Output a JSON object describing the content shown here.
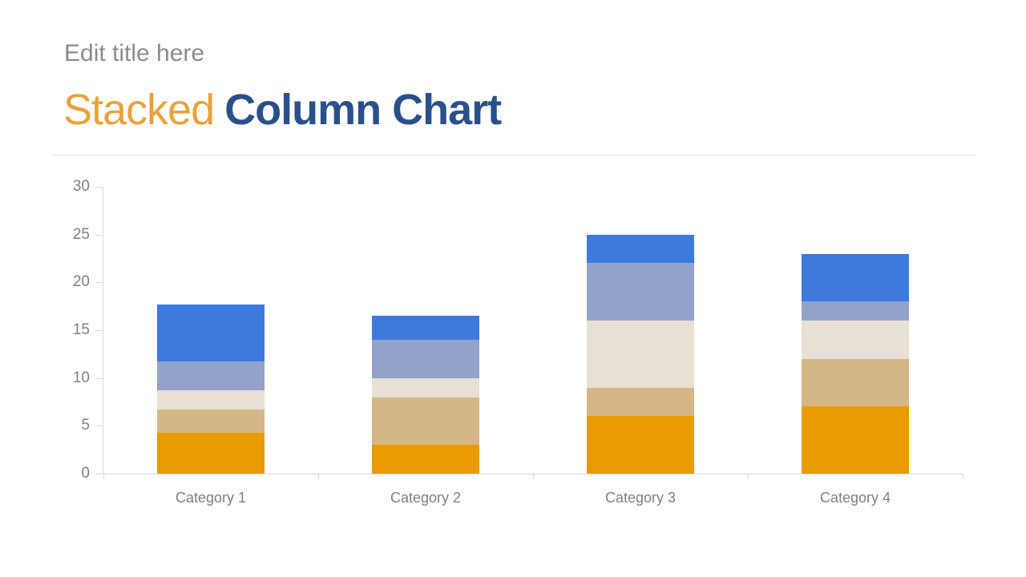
{
  "header": {
    "placeholder": "Edit title here",
    "placeholder_color": "#8C8C8C",
    "title_accent": "Stacked",
    "title_main": "Column Chart",
    "accent_color": "#E9A23B",
    "main_color": "#2A508C"
  },
  "chart_data": {
    "type": "bar",
    "stacked": true,
    "title": "Stacked Column Chart",
    "categories": [
      "Category 1",
      "Category 2",
      "Category 3",
      "Category 4"
    ],
    "series": [
      {
        "name": "orange",
        "color": "#E99B02",
        "values": [
          4.3,
          3.0,
          6.0,
          7.0
        ]
      },
      {
        "name": "tan",
        "color": "#D5B686",
        "values": [
          2.4,
          5.0,
          3.0,
          5.0
        ]
      },
      {
        "name": "cream",
        "color": "#E8E0D5",
        "values": [
          2.0,
          2.0,
          7.0,
          4.0
        ]
      },
      {
        "name": "periwinkle",
        "color": "#93A2C9",
        "values": [
          3.0,
          4.0,
          6.0,
          2.0
        ]
      },
      {
        "name": "blue",
        "color": "#3D7ADC",
        "values": [
          6.0,
          2.5,
          3.0,
          5.0
        ]
      }
    ],
    "ylim": [
      0,
      30
    ],
    "yticks": [
      0,
      5,
      10,
      15,
      20,
      25,
      30
    ],
    "gridlines": false,
    "legend": false,
    "axis_color": "#D9D9D9",
    "tick_label_color": "#7F7F7F"
  }
}
